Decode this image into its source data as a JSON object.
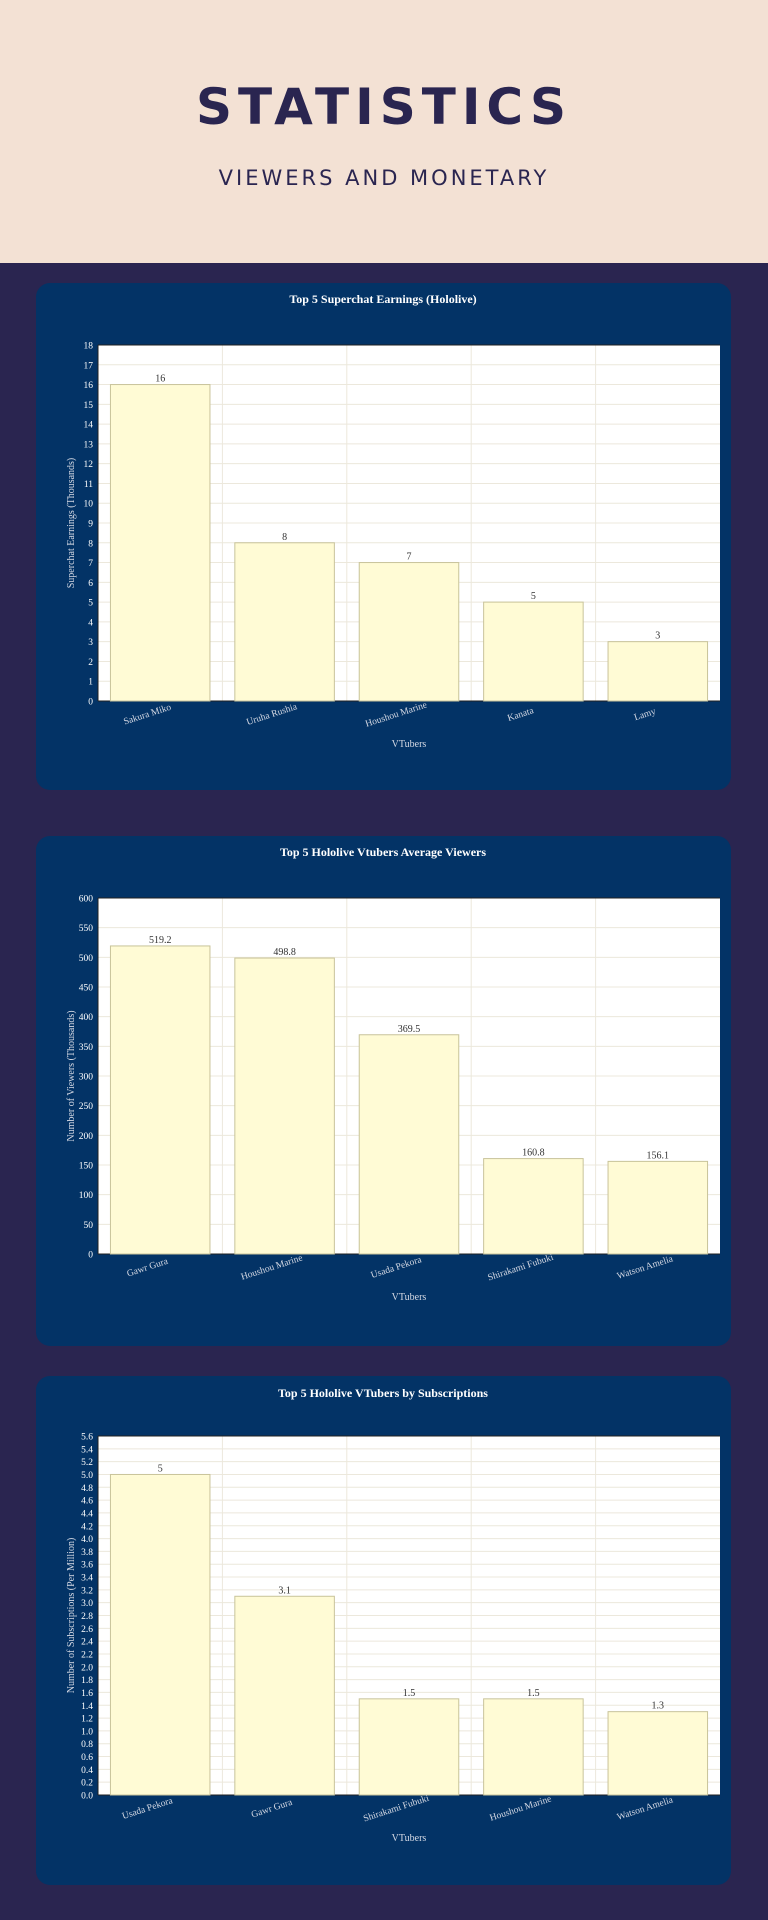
{
  "header": {
    "title": "STATISTICS",
    "subtitle": "VIEWERS AND MONETARY"
  },
  "colors": {
    "page_background": "#2a2550",
    "header_background": "#f3e1d4",
    "card_background": "#033366",
    "bar_fill": "#fffbd5",
    "bar_stroke": "#c8c39a"
  },
  "chart_data": [
    {
      "type": "bar",
      "title": "Top 5 Superchat Earnings (Hololive)",
      "categories": [
        "Sakura Miko",
        "Uruha Rushia",
        "Houshou Marine",
        "Kanata",
        "Lamy"
      ],
      "values": [
        16,
        8,
        7,
        5,
        3
      ],
      "data_labels": [
        "16",
        "8",
        "7",
        "5",
        "3"
      ],
      "xlabel": "VTubers",
      "ylabel": "Superchat Earnings (Thousands)",
      "ylim": [
        0,
        18
      ],
      "ytick_step": 1,
      "ytick_decimals": 0,
      "grid": true
    },
    {
      "type": "bar",
      "title": "Top 5 Hololive Vtubers Average Viewers",
      "categories": [
        "Gawr Gura",
        "Houshou Marine",
        "Usada Pekora",
        "Shirakami Fubuki",
        "Watson Amelia"
      ],
      "values": [
        519.2,
        498.8,
        369.5,
        160.8,
        156.1
      ],
      "data_labels": [
        "519.2",
        "498.8",
        "369.5",
        "160.8",
        "156.1"
      ],
      "xlabel": "VTubers",
      "ylabel": "Number of Viewers (Thousands)",
      "ylim": [
        0,
        600
      ],
      "ytick_step": 50,
      "ytick_decimals": 0,
      "grid": true
    },
    {
      "type": "bar",
      "title": "Top 5 Hololive VTubers by Subscriptions",
      "categories": [
        "Usada Pekora",
        "Gawr Gura",
        "Shirakami Fubuki",
        "Houshou Marine",
        "Watson Amelia"
      ],
      "values": [
        5,
        3.1,
        1.5,
        1.5,
        1.3
      ],
      "data_labels": [
        "5",
        "3.1",
        "1.5",
        "1.5",
        "1.3"
      ],
      "xlabel": "VTubers",
      "ylabel": "Number of Subscriptions (Per Million)",
      "ylim": [
        0,
        5.6
      ],
      "ytick_step": 0.2,
      "ytick_decimals": 1,
      "grid": true
    }
  ]
}
